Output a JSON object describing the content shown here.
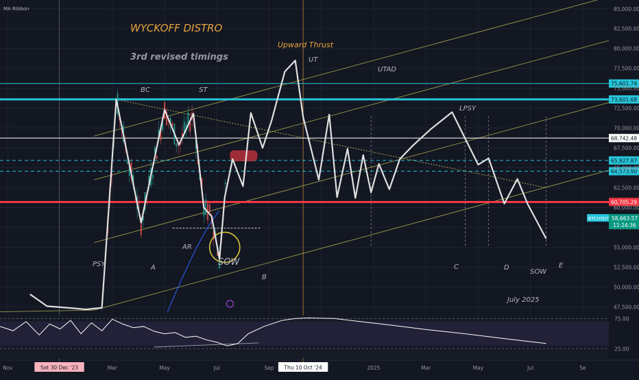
{
  "indicator": {
    "name": "MA Ribbon"
  },
  "annotations": {
    "title": "WYCKOFF DISTRO",
    "subtitle": "3rd revised timings",
    "upward_thrust": "Upward Thrust",
    "labels": [
      "UT",
      "UTAD",
      "BC",
      "ST",
      "LPSY",
      "AR",
      "PSY",
      "A",
      "SOW",
      "B",
      "C",
      "D",
      "SOW",
      "E",
      "July 2025"
    ]
  },
  "symbol": {
    "ticker": "BTCUSDT",
    "price": "58,663.57",
    "countdown": "11:24:36"
  },
  "levels": [
    {
      "label": "75,601.74",
      "value": 75601.74,
      "color": "#26c6da",
      "style": "solid",
      "width": 1
    },
    {
      "label": "73,601.68",
      "value": 73601.68,
      "color": "#26c6da",
      "style": "solid",
      "width": 3
    },
    {
      "label": "68,742.48",
      "value": 68742.48,
      "color": "#ffffff",
      "style": "solid",
      "width": 1
    },
    {
      "label": "65,927.87",
      "value": 65927.87,
      "color": "#26c6da",
      "style": "dashed",
      "width": 1
    },
    {
      "label": "64,573.90",
      "value": 64573.9,
      "color": "#26c6da",
      "style": "dashed",
      "width": 1
    },
    {
      "label": "60,705.29",
      "value": 60705.29,
      "color": "#f23645",
      "style": "solid",
      "width": 3
    }
  ],
  "colors": {
    "background": "#131722",
    "price_line": "#e0e0e0",
    "channel": "#c9c45a",
    "cyan": "#26c6da",
    "red": "#f23645",
    "annotation": "#b2b5be",
    "title": "#e8a33d"
  },
  "chart_data": {
    "type": "line",
    "y_axis": {
      "ticks": [
        "85,000.00",
        "82,500.00",
        "80,000.00",
        "77,500.00",
        "75,000.00",
        "72,500.00",
        "70,000.00",
        "67,500.00",
        "65,000.00",
        "62,500.00",
        "60,000.00",
        "57,500.00",
        "55,000.00",
        "52,500.00",
        "50,000.00",
        "47,500.00"
      ],
      "tick_values": [
        85000,
        82500,
        80000,
        77500,
        75000,
        72500,
        70000,
        67500,
        65000,
        62500,
        60000,
        57500,
        55000,
        52500,
        50000,
        47500
      ],
      "range": [
        46600,
        86100
      ]
    },
    "x_axis": {
      "ticks": [
        "Nov",
        "Mar",
        "May",
        "Jul",
        "Sep",
        "Nov",
        "2025",
        "Mar",
        "May",
        "Jul",
        "Se"
      ],
      "tick_months": [
        0,
        4,
        6,
        8,
        10,
        12,
        14,
        16,
        18,
        20,
        22
      ],
      "highlight_labels": [
        {
          "text": "Sat 30 Dec '23",
          "month": 1.97
        },
        {
          "text": "Thu 10 Oct '24",
          "month": 11.3
        }
      ],
      "range": [
        -0.3,
        23
      ]
    },
    "series": [
      {
        "values_note": "",
        "x": [
          0.85,
          1.5,
          2.3,
          3.0,
          3.6,
          4.15,
          5.1,
          6.0,
          6.55,
          7.1,
          7.5,
          7.8,
          8.1,
          8.3,
          8.6,
          9.0,
          9.3,
          9.75,
          10.1,
          10.6,
          11.0,
          11.3,
          11.9,
          12.3,
          12.6,
          13.0,
          13.3,
          13.6,
          13.9,
          14.2,
          14.6,
          15.0,
          15.5,
          16.2,
          17.0,
          18.0,
          18.4,
          19.0,
          19.5,
          19.9,
          20.6
        ],
        "values": [
          49100,
          47600,
          47400,
          47200,
          47400,
          73600,
          58100,
          72300,
          67900,
          71800,
          60000,
          58900,
          53500,
          61300,
          66100,
          62700,
          71900,
          67500,
          71000,
          77100,
          78500,
          71400,
          63500,
          71700,
          61300,
          67400,
          61200,
          66600,
          61900,
          65500,
          62300,
          66100,
          67800,
          69900,
          72000,
          65400,
          66200,
          60500,
          63600,
          60400,
          56100
        ]
      }
    ],
    "rsi": {
      "ticks": [
        "75.00",
        "25.00"
      ],
      "tick_values": [
        75,
        25
      ],
      "range": [
        10,
        80
      ],
      "x": [
        -0.3,
        0.2,
        0.7,
        1.2,
        1.6,
        2.0,
        2.4,
        2.8,
        3.2,
        3.6,
        4.0,
        4.4,
        4.8,
        5.2,
        5.6,
        6.0,
        6.4,
        6.8,
        7.2,
        7.6,
        8.0,
        8.4,
        8.8,
        9.2,
        9.8,
        10.5,
        11.0,
        11.5,
        12.5,
        13.5,
        14.5,
        16.0,
        17.5,
        19.0,
        20.6
      ],
      "values": [
        62,
        55,
        70,
        48,
        66,
        58,
        72,
        50,
        68,
        55,
        74,
        66,
        60,
        62,
        54,
        50,
        52,
        44,
        46,
        40,
        36,
        30,
        34,
        50,
        62,
        72,
        75,
        76,
        75,
        70,
        65,
        57,
        50,
        42,
        34
      ]
    }
  }
}
